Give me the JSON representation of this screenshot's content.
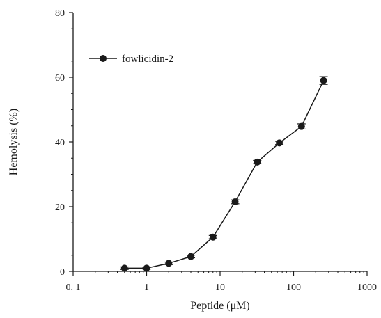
{
  "chart_data": {
    "type": "line",
    "xlabel": "Peptide (μM)",
    "ylabel": "Hemolysis (%)",
    "xscale": "log",
    "xlim": [
      0.1,
      1000
    ],
    "ylim": [
      0,
      80
    ],
    "x_ticks": [
      0.1,
      1,
      10,
      100,
      1000
    ],
    "x_tick_labels": [
      "0. 1",
      "1",
      "10",
      "100",
      "1000"
    ],
    "y_ticks": [
      0,
      20,
      40,
      60,
      80
    ],
    "y_tick_labels": [
      "0",
      "20",
      "40",
      "60",
      "80"
    ],
    "legend_position": "top-left",
    "grid": false,
    "series": [
      {
        "name": "fowlicidin-2",
        "color": "#1a1a1a",
        "marker": "circle",
        "x": [
          0.5,
          1,
          2,
          4,
          8,
          16,
          32,
          64,
          128,
          256
        ],
        "y": [
          1.0,
          1.0,
          2.5,
          4.6,
          10.6,
          21.5,
          33.8,
          39.7,
          44.8,
          59.0
        ],
        "error": [
          0.4,
          0.3,
          0.4,
          0.4,
          0.5,
          0.6,
          0.5,
          0.5,
          0.8,
          1.2
        ]
      }
    ]
  }
}
